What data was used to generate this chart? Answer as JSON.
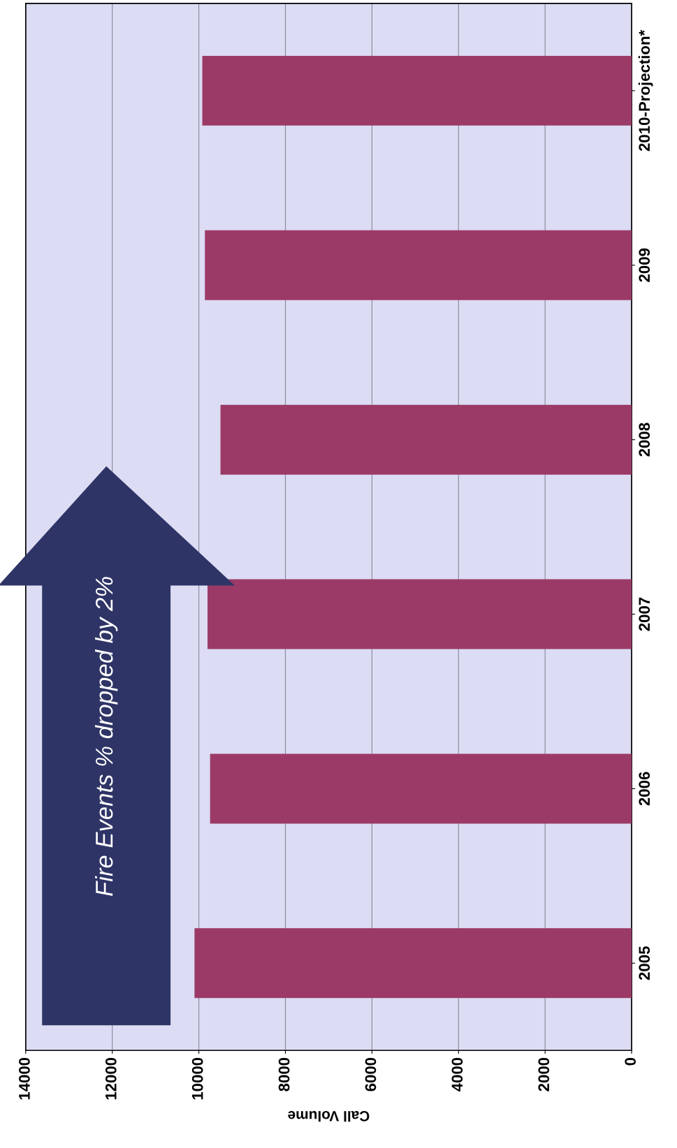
{
  "chart_data": {
    "type": "bar",
    "orientation": "horizontal",
    "xlabel": "Call Volume",
    "categories": [
      "2010-Projection*",
      "2009",
      "2008",
      "2007",
      "2006",
      "2005"
    ],
    "values": [
      9920,
      9860,
      9500,
      9800,
      9740,
      10100
    ],
    "color": "#9b3a66",
    "xlim": [
      14000,
      0
    ],
    "xticks": [
      0,
      2000,
      4000,
      6000,
      8000,
      10000,
      12000,
      14000
    ],
    "grid": "x",
    "annotations": [
      "Fire Events % dropped by 2%"
    ]
  }
}
